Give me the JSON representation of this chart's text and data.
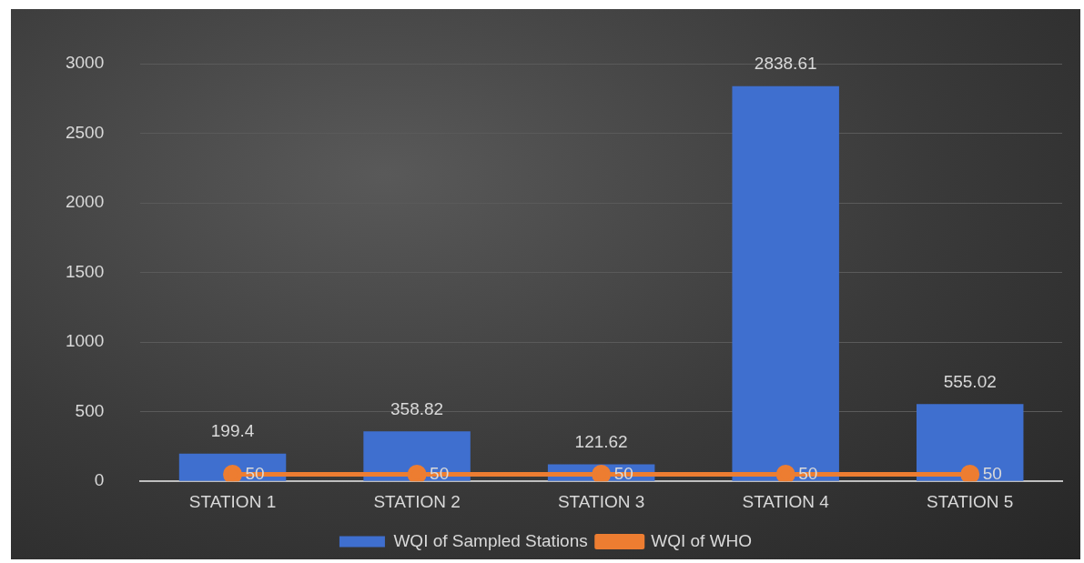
{
  "chart_data": {
    "type": "bar",
    "categories": [
      "STATION 1",
      "STATION 2",
      "STATION 3",
      "STATION 4",
      "STATION 5"
    ],
    "series": [
      {
        "name": "WQI of Sampled Stations",
        "color": "#3f6fcf",
        "values": [
          199.4,
          358.82,
          121.62,
          2838.61,
          555.02
        ]
      },
      {
        "name": "WQI of WHO",
        "type": "line",
        "color": "#ed7d31",
        "values": [
          50,
          50,
          50,
          50,
          50
        ]
      }
    ],
    "ylim": [
      0,
      3000
    ],
    "yticks": [
      0,
      500,
      1000,
      1500,
      2000,
      2500,
      3000
    ],
    "grid": "y",
    "legend": "bottom",
    "marker": "circle",
    "line_style": "solid",
    "data_labels": true
  }
}
